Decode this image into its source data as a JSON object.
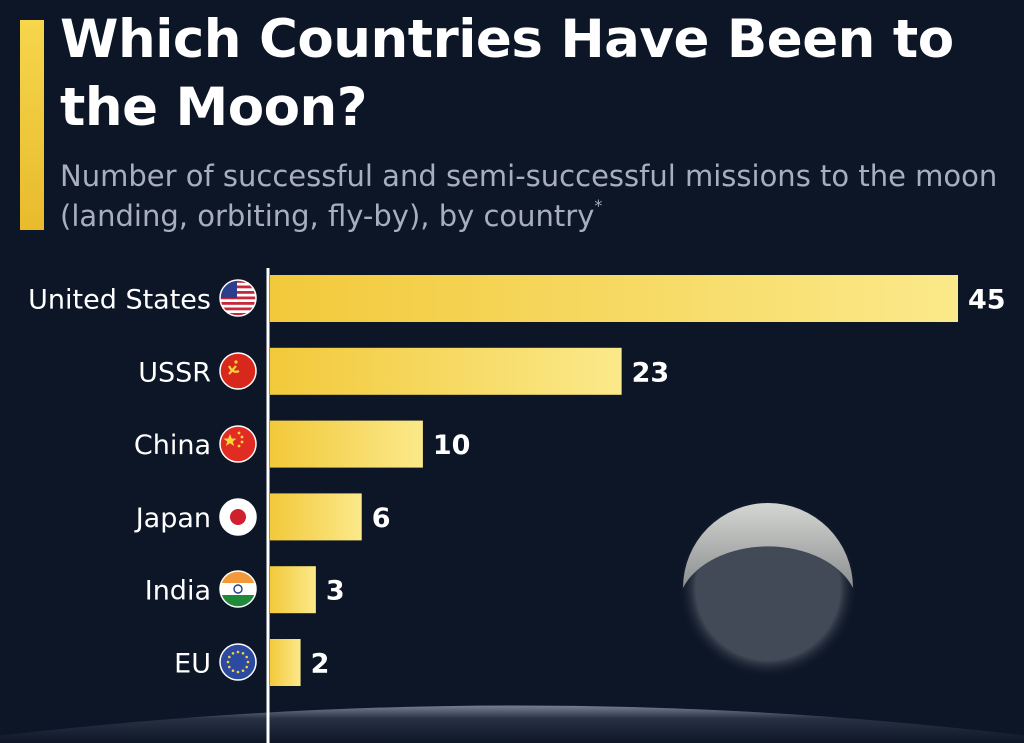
{
  "title": "Which Countries Have Been to the Moon?",
  "subtitle": "Number of successful and semi-successful missions to the moon (landing, orbiting, fly-by), by country",
  "subtitle_mark": "*",
  "colors": {
    "background": "#0d1626",
    "accent": "#f2cf46",
    "bar_start": "#f2c93a",
    "bar_end": "#fbe98a",
    "text": "#ffffff",
    "subtitle": "#a7afbd"
  },
  "chart_data": {
    "type": "bar",
    "orientation": "horizontal",
    "categories": [
      "United States",
      "USSR",
      "China",
      "Japan",
      "India",
      "EU"
    ],
    "values": [
      45,
      23,
      10,
      6,
      3,
      2
    ],
    "flags": [
      "us-flag-icon",
      "ussr-flag-icon",
      "china-flag-icon",
      "japan-flag-icon",
      "india-flag-icon",
      "eu-flag-icon"
    ],
    "title": "Which Countries Have Been to the Moon?",
    "xlabel": "",
    "ylabel": "",
    "xlim": [
      0,
      45
    ],
    "grid": false,
    "legend": "none",
    "data_labels": true
  }
}
